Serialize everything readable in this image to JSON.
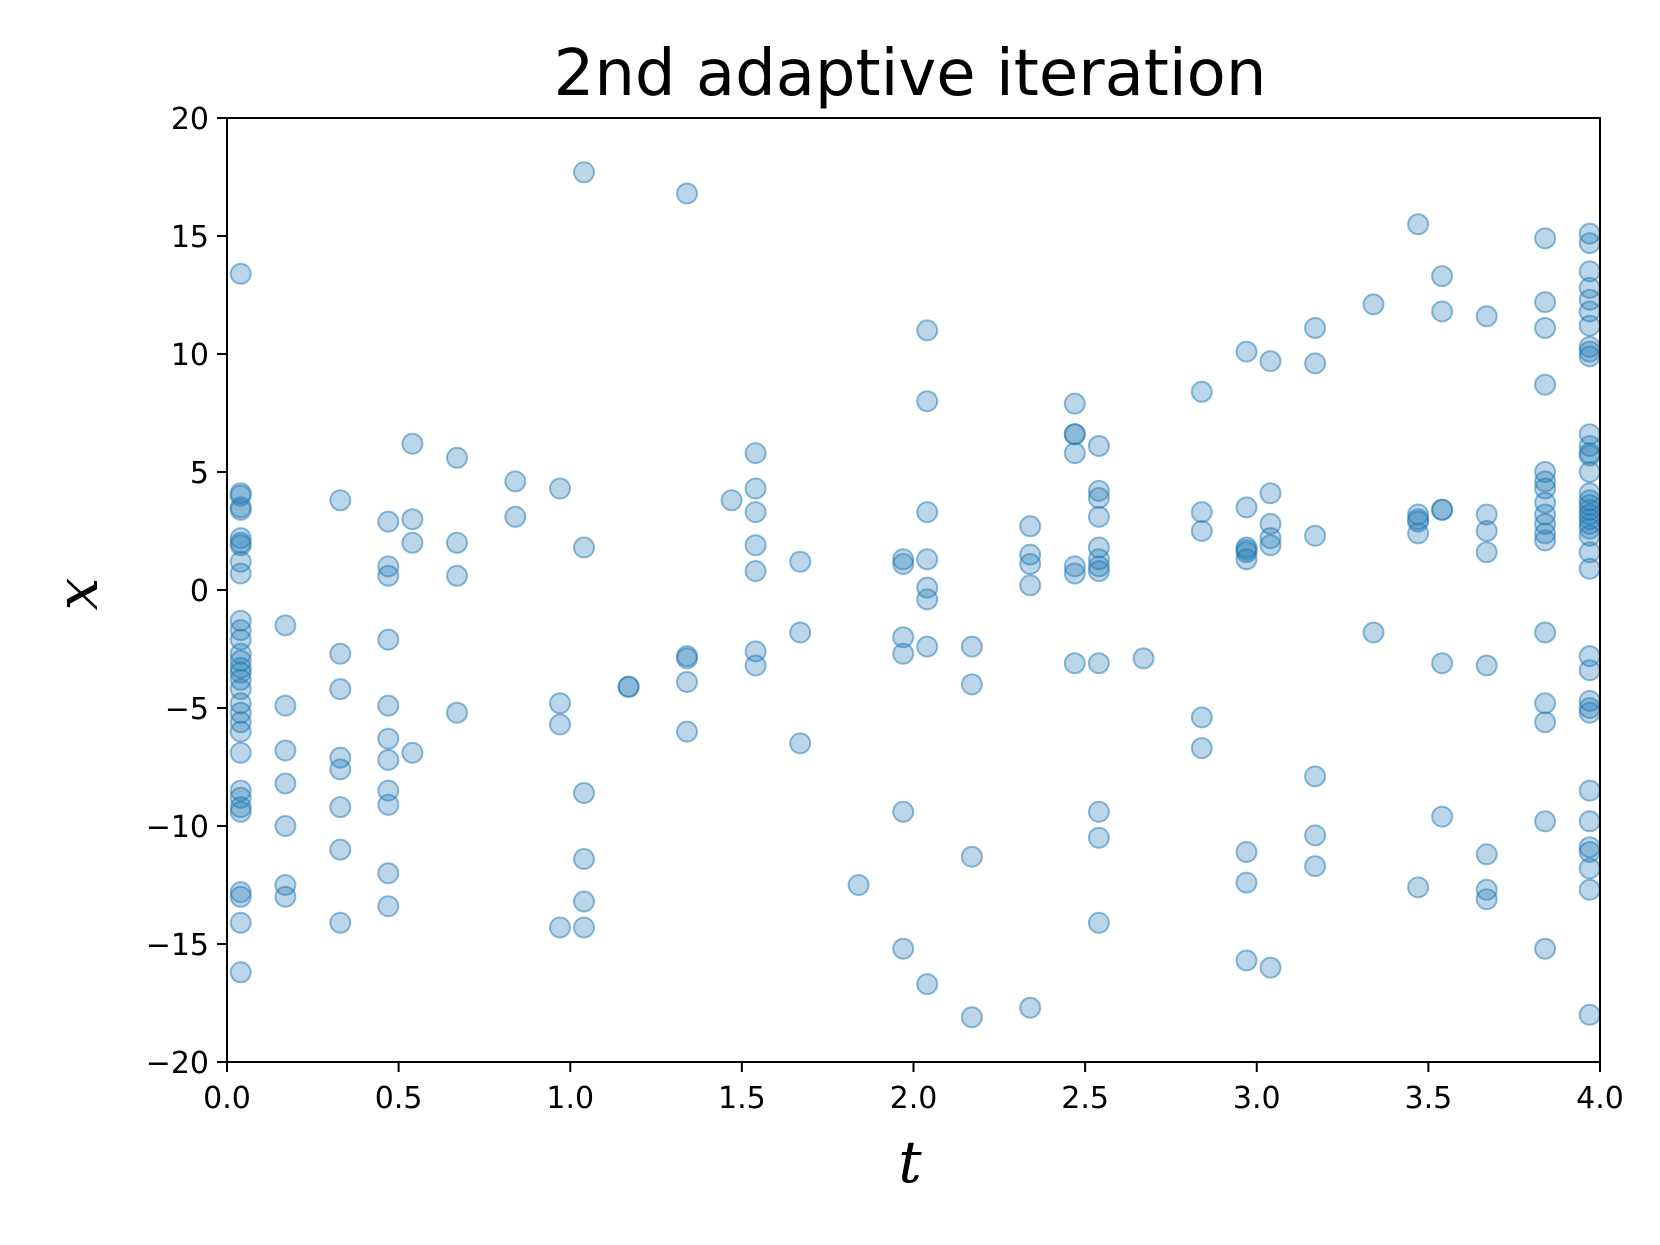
{
  "chart_data": {
    "type": "scatter",
    "title": "2nd adaptive iteration",
    "xlabel": "t",
    "ylabel": "x",
    "xlim": [
      0,
      4
    ],
    "ylim": [
      -20,
      20
    ],
    "xticks": [
      0.0,
      0.5,
      1.0,
      1.5,
      2.0,
      2.5,
      3.0,
      3.5,
      4.0
    ],
    "xtick_labels": [
      "0.0",
      "0.5",
      "1.0",
      "1.5",
      "2.0",
      "2.5",
      "3.0",
      "3.5",
      "4.0"
    ],
    "yticks": [
      20,
      15,
      10,
      5,
      0,
      -5,
      -10,
      -15,
      -20
    ],
    "ytick_labels": [
      "20",
      "15",
      "10",
      "5",
      "0",
      "−5",
      "−10",
      "−15",
      "−20"
    ],
    "grid": false,
    "point_color": "#1f77b4",
    "points": [
      [
        0.04,
        13.4
      ],
      [
        0.04,
        4.1
      ],
      [
        0.04,
        4.0
      ],
      [
        0.04,
        3.5
      ],
      [
        0.04,
        3.4
      ],
      [
        0.04,
        2.2
      ],
      [
        0.04,
        2.0
      ],
      [
        0.04,
        1.9
      ],
      [
        0.04,
        1.2
      ],
      [
        0.04,
        0.7
      ],
      [
        0.04,
        -1.3
      ],
      [
        0.04,
        -1.7
      ],
      [
        0.04,
        -2.1
      ],
      [
        0.04,
        -2.7
      ],
      [
        0.04,
        -3.0
      ],
      [
        0.04,
        -3.3
      ],
      [
        0.04,
        -3.5
      ],
      [
        0.04,
        -3.8
      ],
      [
        0.04,
        -4.2
      ],
      [
        0.04,
        -4.8
      ],
      [
        0.04,
        -5.2
      ],
      [
        0.04,
        -5.6
      ],
      [
        0.04,
        -6.0
      ],
      [
        0.04,
        -6.9
      ],
      [
        0.04,
        -8.5
      ],
      [
        0.04,
        -8.8
      ],
      [
        0.04,
        -9.2
      ],
      [
        0.04,
        -9.4
      ],
      [
        0.04,
        -12.8
      ],
      [
        0.04,
        -13.0
      ],
      [
        0.04,
        -14.1
      ],
      [
        0.04,
        -16.2
      ],
      [
        0.17,
        -1.5
      ],
      [
        0.17,
        -4.9
      ],
      [
        0.17,
        -6.8
      ],
      [
        0.17,
        -8.2
      ],
      [
        0.17,
        -10.0
      ],
      [
        0.17,
        -12.5
      ],
      [
        0.17,
        -13.0
      ],
      [
        0.33,
        3.8
      ],
      [
        0.33,
        -2.7
      ],
      [
        0.33,
        -4.2
      ],
      [
        0.33,
        -7.1
      ],
      [
        0.33,
        -7.6
      ],
      [
        0.33,
        -9.2
      ],
      [
        0.33,
        -11.0
      ],
      [
        0.33,
        -14.1
      ],
      [
        0.47,
        2.9
      ],
      [
        0.47,
        1.0
      ],
      [
        0.47,
        0.6
      ],
      [
        0.47,
        -2.1
      ],
      [
        0.47,
        -4.9
      ],
      [
        0.47,
        -6.3
      ],
      [
        0.47,
        -7.2
      ],
      [
        0.47,
        -8.5
      ],
      [
        0.47,
        -9.1
      ],
      [
        0.47,
        -12.0
      ],
      [
        0.47,
        -13.4
      ],
      [
        0.54,
        6.2
      ],
      [
        0.54,
        3.0
      ],
      [
        0.54,
        2.0
      ],
      [
        0.54,
        -6.9
      ],
      [
        0.67,
        5.6
      ],
      [
        0.67,
        2.0
      ],
      [
        0.67,
        0.6
      ],
      [
        0.67,
        -5.2
      ],
      [
        0.84,
        4.6
      ],
      [
        0.84,
        3.1
      ],
      [
        0.97,
        4.3
      ],
      [
        0.97,
        -4.8
      ],
      [
        0.97,
        -5.7
      ],
      [
        0.97,
        -14.3
      ],
      [
        1.04,
        17.7
      ],
      [
        1.04,
        1.8
      ],
      [
        1.04,
        -8.6
      ],
      [
        1.04,
        -11.4
      ],
      [
        1.04,
        -13.2
      ],
      [
        1.04,
        -14.3
      ],
      [
        1.17,
        -4.1
      ],
      [
        1.17,
        -4.1
      ],
      [
        1.34,
        16.8
      ],
      [
        1.34,
        -2.8
      ],
      [
        1.34,
        -2.9
      ],
      [
        1.34,
        -3.9
      ],
      [
        1.34,
        -6.0
      ],
      [
        1.47,
        3.8
      ],
      [
        1.54,
        5.8
      ],
      [
        1.54,
        4.3
      ],
      [
        1.54,
        3.3
      ],
      [
        1.54,
        1.9
      ],
      [
        1.54,
        0.8
      ],
      [
        1.54,
        -2.6
      ],
      [
        1.54,
        -3.2
      ],
      [
        1.67,
        1.2
      ],
      [
        1.67,
        -1.8
      ],
      [
        1.67,
        -6.5
      ],
      [
        1.84,
        -12.5
      ],
      [
        1.97,
        1.3
      ],
      [
        1.97,
        1.1
      ],
      [
        1.97,
        -2.0
      ],
      [
        1.97,
        -2.7
      ],
      [
        1.97,
        -9.4
      ],
      [
        1.97,
        -15.2
      ],
      [
        2.04,
        11.0
      ],
      [
        2.04,
        8.0
      ],
      [
        2.04,
        3.3
      ],
      [
        2.04,
        1.3
      ],
      [
        2.04,
        0.1
      ],
      [
        2.04,
        -0.4
      ],
      [
        2.04,
        -2.4
      ],
      [
        2.04,
        -16.7
      ],
      [
        2.17,
        -2.4
      ],
      [
        2.17,
        -4.0
      ],
      [
        2.17,
        -11.3
      ],
      [
        2.17,
        -18.1
      ],
      [
        2.34,
        2.7
      ],
      [
        2.34,
        1.5
      ],
      [
        2.34,
        1.1
      ],
      [
        2.34,
        0.2
      ],
      [
        2.34,
        -17.7
      ],
      [
        2.47,
        7.9
      ],
      [
        2.47,
        6.6
      ],
      [
        2.47,
        6.6
      ],
      [
        2.47,
        5.8
      ],
      [
        2.47,
        1.0
      ],
      [
        2.47,
        0.7
      ],
      [
        2.47,
        -3.1
      ],
      [
        2.54,
        6.1
      ],
      [
        2.54,
        4.2
      ],
      [
        2.54,
        3.9
      ],
      [
        2.54,
        3.1
      ],
      [
        2.54,
        1.8
      ],
      [
        2.54,
        1.3
      ],
      [
        2.54,
        1.0
      ],
      [
        2.54,
        0.8
      ],
      [
        2.54,
        -3.1
      ],
      [
        2.54,
        -9.4
      ],
      [
        2.54,
        -10.5
      ],
      [
        2.54,
        -14.1
      ],
      [
        2.67,
        -2.9
      ],
      [
        2.84,
        8.4
      ],
      [
        2.84,
        3.3
      ],
      [
        2.84,
        2.5
      ],
      [
        2.84,
        -5.4
      ],
      [
        2.84,
        -6.7
      ],
      [
        2.97,
        10.1
      ],
      [
        2.97,
        3.5
      ],
      [
        2.97,
        1.8
      ],
      [
        2.97,
        1.7
      ],
      [
        2.97,
        1.6
      ],
      [
        2.97,
        1.3
      ],
      [
        2.97,
        -11.1
      ],
      [
        2.97,
        -12.4
      ],
      [
        2.97,
        -15.7
      ],
      [
        3.04,
        9.7
      ],
      [
        3.04,
        4.1
      ],
      [
        3.04,
        2.8
      ],
      [
        3.04,
        2.2
      ],
      [
        3.04,
        1.9
      ],
      [
        3.04,
        -16.0
      ],
      [
        3.17,
        11.1
      ],
      [
        3.17,
        9.6
      ],
      [
        3.17,
        2.3
      ],
      [
        3.17,
        -7.9
      ],
      [
        3.17,
        -10.4
      ],
      [
        3.17,
        -11.7
      ],
      [
        3.34,
        12.1
      ],
      [
        3.34,
        -1.8
      ],
      [
        3.47,
        15.5
      ],
      [
        3.47,
        3.2
      ],
      [
        3.47,
        3.0
      ],
      [
        3.47,
        2.9
      ],
      [
        3.47,
        2.4
      ],
      [
        3.47,
        -12.6
      ],
      [
        3.54,
        13.3
      ],
      [
        3.54,
        11.8
      ],
      [
        3.54,
        3.4
      ],
      [
        3.54,
        3.4
      ],
      [
        3.54,
        -3.1
      ],
      [
        3.54,
        -9.6
      ],
      [
        3.67,
        11.6
      ],
      [
        3.67,
        3.2
      ],
      [
        3.67,
        2.5
      ],
      [
        3.67,
        1.6
      ],
      [
        3.67,
        -3.2
      ],
      [
        3.67,
        -11.2
      ],
      [
        3.67,
        -12.7
      ],
      [
        3.67,
        -13.1
      ],
      [
        3.84,
        14.9
      ],
      [
        3.84,
        12.2
      ],
      [
        3.84,
        11.1
      ],
      [
        3.84,
        8.7
      ],
      [
        3.84,
        5.0
      ],
      [
        3.84,
        4.6
      ],
      [
        3.84,
        4.3
      ],
      [
        3.84,
        3.7
      ],
      [
        3.84,
        3.2
      ],
      [
        3.84,
        2.8
      ],
      [
        3.84,
        2.4
      ],
      [
        3.84,
        2.1
      ],
      [
        3.84,
        -1.8
      ],
      [
        3.84,
        -4.8
      ],
      [
        3.84,
        -5.6
      ],
      [
        3.84,
        -9.8
      ],
      [
        3.84,
        -15.2
      ],
      [
        3.97,
        15.1
      ],
      [
        3.97,
        14.7
      ],
      [
        3.97,
        13.5
      ],
      [
        3.97,
        12.8
      ],
      [
        3.97,
        12.3
      ],
      [
        3.97,
        11.8
      ],
      [
        3.97,
        11.2
      ],
      [
        3.97,
        10.3
      ],
      [
        3.97,
        10.1
      ],
      [
        3.97,
        9.9
      ],
      [
        3.97,
        6.6
      ],
      [
        3.97,
        6.1
      ],
      [
        3.97,
        5.8
      ],
      [
        3.97,
        5.7
      ],
      [
        3.97,
        5.0
      ],
      [
        3.97,
        4.1
      ],
      [
        3.97,
        3.8
      ],
      [
        3.97,
        3.6
      ],
      [
        3.97,
        3.4
      ],
      [
        3.97,
        3.2
      ],
      [
        3.97,
        3.0
      ],
      [
        3.97,
        2.8
      ],
      [
        3.97,
        2.6
      ],
      [
        3.97,
        2.3
      ],
      [
        3.97,
        1.6
      ],
      [
        3.97,
        0.9
      ],
      [
        3.97,
        -2.8
      ],
      [
        3.97,
        -3.4
      ],
      [
        3.97,
        -4.7
      ],
      [
        3.97,
        -5.0
      ],
      [
        3.97,
        -5.2
      ],
      [
        3.97,
        -8.5
      ],
      [
        3.97,
        -9.8
      ],
      [
        3.97,
        -10.9
      ],
      [
        3.97,
        -11.1
      ],
      [
        3.97,
        -11.8
      ],
      [
        3.97,
        -12.7
      ],
      [
        3.97,
        -18.0
      ]
    ]
  }
}
